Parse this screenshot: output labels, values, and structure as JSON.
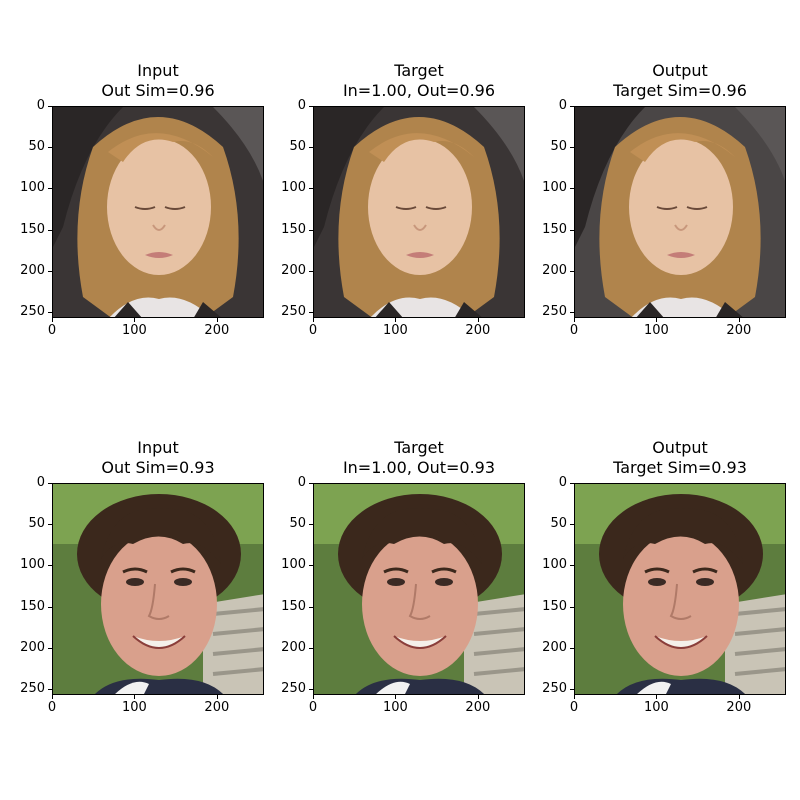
{
  "figure": {
    "rows": [
      {
        "scene": "child",
        "panels": [
          {
            "line1": "Input",
            "line2": "Out Sim=0.96"
          },
          {
            "line1": "Target",
            "line2": "In=1.00, Out=0.96"
          },
          {
            "line1": "Output",
            "line2": "Target Sim=0.96"
          }
        ]
      },
      {
        "scene": "man",
        "panels": [
          {
            "line1": "Input",
            "line2": "Out Sim=0.93"
          },
          {
            "line1": "Target",
            "line2": "In=1.00, Out=0.93"
          },
          {
            "line1": "Output",
            "line2": "Target Sim=0.93"
          }
        ]
      }
    ],
    "yticks": [
      "0",
      "50",
      "100",
      "150",
      "200",
      "250"
    ],
    "xticks": [
      "0",
      "100",
      "200"
    ],
    "ytick_values": [
      0,
      50,
      100,
      150,
      200,
      250
    ],
    "xtick_values": [
      0,
      100,
      200
    ],
    "image_size": 256
  }
}
